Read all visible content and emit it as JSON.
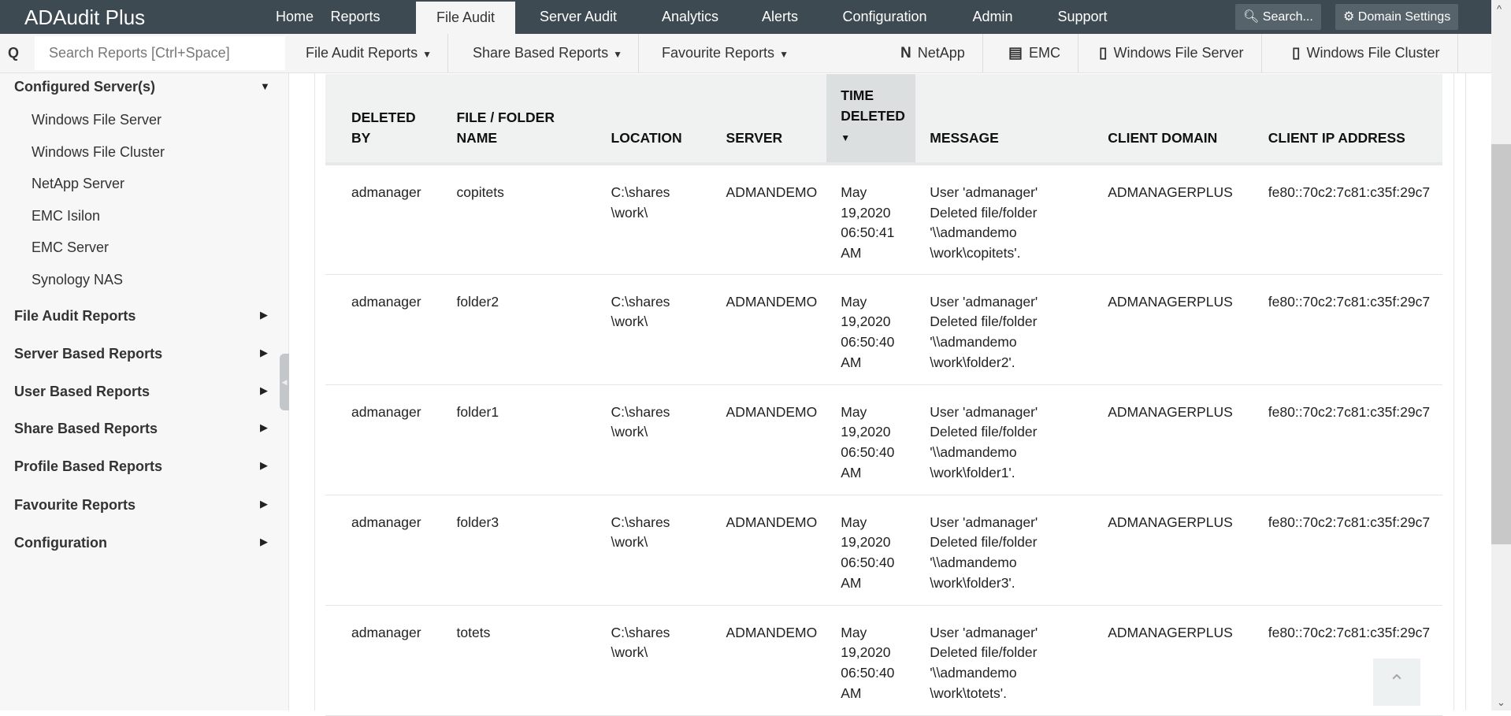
{
  "app": {
    "title": "ADAudit Plus"
  },
  "nav": {
    "tabs": [
      "Home",
      "Reports",
      "File Audit",
      "Server Audit",
      "Analytics",
      "Alerts",
      "Configuration",
      "Admin",
      "Support"
    ],
    "active": "File Audit",
    "search_label": "Search...",
    "domain_settings_label": "Domain Settings"
  },
  "toolbar": {
    "search_placeholder": "Search Reports [Ctrl+Space]",
    "dropdowns": [
      "File Audit Reports",
      "Share Based Reports",
      "Favourite Reports"
    ],
    "servers": [
      "NetApp",
      "EMC",
      "Windows File Server",
      "Windows File Cluster"
    ]
  },
  "sidebar": {
    "configured": "Configured Server(s)",
    "sub_items": [
      "Windows File Server",
      "Windows File Cluster",
      "NetApp Server",
      "EMC Isilon",
      "EMC Server",
      "Synology NAS"
    ],
    "sections": [
      "File Audit Reports",
      "Server Based Reports",
      "User Based Reports",
      "Share Based Reports",
      "Profile Based Reports",
      "Favourite Reports",
      "Configuration"
    ]
  },
  "table": {
    "headers": [
      "DELETED BY",
      "FILE / FOLDER NAME",
      "LOCATION",
      "SERVER",
      "TIME DELETED",
      "MESSAGE",
      "CLIENT DOMAIN",
      "CLIENT IP ADDRESS"
    ],
    "sorted_column": "TIME DELETED",
    "sort_direction": "descending",
    "rows": [
      [
        "admanager",
        "copitets",
        "C:\\shares \\work\\",
        "ADMANDEMO",
        "May 19,2020 06:50:41 AM",
        "User 'admanager' Deleted file/folder '\\\\admandemo \\work\\copitets'.",
        "ADMANAGERPLUS",
        "fe80::70c2:7c81:c35f:29c7"
      ],
      [
        "admanager",
        "folder2",
        "C:\\shares \\work\\",
        "ADMANDEMO",
        "May 19,2020 06:50:40 AM",
        "User 'admanager' Deleted file/folder '\\\\admandemo \\work\\folder2'.",
        "ADMANAGERPLUS",
        "fe80::70c2:7c81:c35f:29c7"
      ],
      [
        "admanager",
        "folder1",
        "C:\\shares \\work\\",
        "ADMANDEMO",
        "May 19,2020 06:50:40 AM",
        "User 'admanager' Deleted file/folder '\\\\admandemo \\work\\folder1'.",
        "ADMANAGERPLUS",
        "fe80::70c2:7c81:c35f:29c7"
      ],
      [
        "admanager",
        "folder3",
        "C:\\shares \\work\\",
        "ADMANDEMO",
        "May 19,2020 06:50:40 AM",
        "User 'admanager' Deleted file/folder '\\\\admandemo \\work\\folder3'.",
        "ADMANAGERPLUS",
        "fe80::70c2:7c81:c35f:29c7"
      ],
      [
        "admanager",
        "totets",
        "C:\\shares \\work\\",
        "ADMANDEMO",
        "May 19,2020 06:50:40 AM",
        "User 'admanager' Deleted file/folder '\\\\admandemo \\work\\totets'.",
        "ADMANAGERPLUS",
        "fe80::70c2:7c81:c35f:29c7"
      ]
    ]
  },
  "colors": {
    "topbar": "#3e4a52",
    "sorted_header": "#dcdfe0",
    "header": "#f0f2f2"
  }
}
